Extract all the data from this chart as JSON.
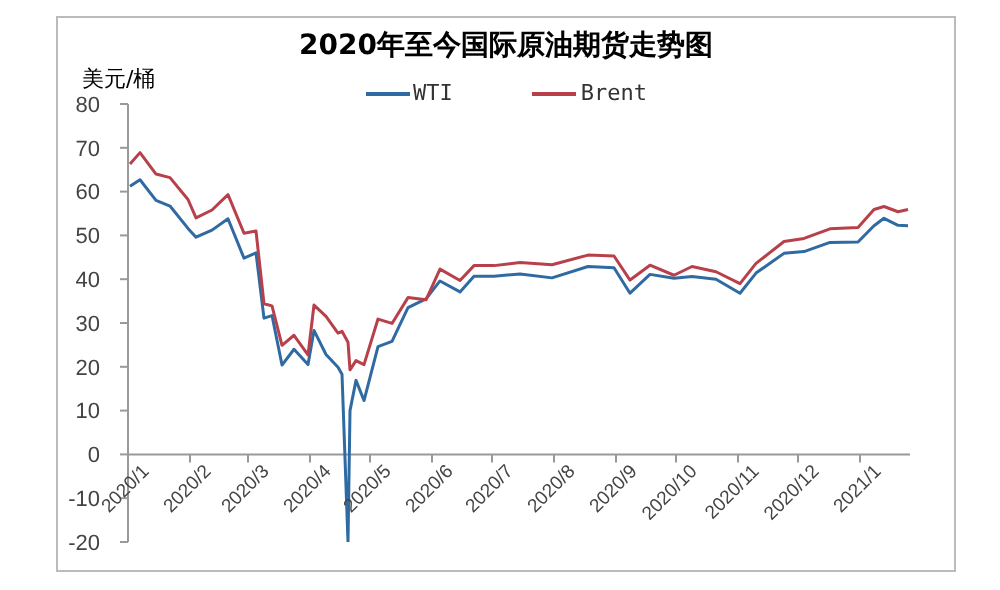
{
  "chart_data": {
    "type": "line",
    "title": "2020年至今国际原油期货走势图",
    "ylabel": "美元/桶",
    "x": [
      "2020-01-02",
      "2020-01-07",
      "2020-01-15",
      "2020-01-22",
      "2020-01-31",
      "2020-02-04",
      "2020-02-12",
      "2020-02-20",
      "2020-02-28",
      "2020-03-05",
      "2020-03-09",
      "2020-03-13",
      "2020-03-18",
      "2020-03-24",
      "2020-03-31",
      "2020-04-03",
      "2020-04-09",
      "2020-04-15",
      "2020-04-17",
      "2020-04-20",
      "2020-04-21",
      "2020-04-24",
      "2020-04-28",
      "2020-05-05",
      "2020-05-12",
      "2020-05-20",
      "2020-05-29",
      "2020-06-05",
      "2020-06-15",
      "2020-06-22",
      "2020-07-02",
      "2020-07-15",
      "2020-07-31",
      "2020-08-18",
      "2020-08-31",
      "2020-09-08",
      "2020-09-18",
      "2020-09-30",
      "2020-10-09",
      "2020-10-21",
      "2020-11-02",
      "2020-11-10",
      "2020-11-24",
      "2020-12-04",
      "2020-12-17",
      "2020-12-31",
      "2021-01-08",
      "2021-01-13",
      "2021-01-20",
      "2021-01-25"
    ],
    "series": [
      {
        "name": "WTI",
        "color": "#2f6aa3",
        "values": [
          61.2,
          62.7,
          58.0,
          56.7,
          51.6,
          49.6,
          51.2,
          53.8,
          44.8,
          46.0,
          31.1,
          31.7,
          20.4,
          24.0,
          20.5,
          28.3,
          22.8,
          19.9,
          18.3,
          -20,
          10.0,
          16.9,
          12.3,
          24.6,
          25.8,
          33.5,
          35.5,
          39.6,
          37.1,
          40.7,
          40.7,
          41.2,
          40.3,
          42.9,
          42.6,
          36.8,
          41.1,
          40.2,
          40.6,
          40.0,
          36.8,
          41.4,
          45.9,
          46.3,
          48.4,
          48.5,
          52.2,
          53.9,
          52.3,
          52.2
        ]
      },
      {
        "name": "Brent",
        "color": "#b8404a",
        "values": [
          66.3,
          68.9,
          64.0,
          63.2,
          58.2,
          54.0,
          55.8,
          59.3,
          50.5,
          51.0,
          34.4,
          33.9,
          24.9,
          27.2,
          22.7,
          34.1,
          31.5,
          27.7,
          28.1,
          25.6,
          19.3,
          21.4,
          20.5,
          30.9,
          29.9,
          35.8,
          35.3,
          42.3,
          39.7,
          43.1,
          43.1,
          43.8,
          43.3,
          45.5,
          45.3,
          39.8,
          43.2,
          40.9,
          42.9,
          41.7,
          39.0,
          43.6,
          48.6,
          49.3,
          51.5,
          51.8,
          55.9,
          56.6,
          55.4,
          55.9
        ]
      }
    ],
    "xlim": [
      "2020-01-01",
      "2021-01-26"
    ],
    "xticks": [
      {
        "value": "2020-01-01",
        "label": "2020/1"
      },
      {
        "value": "2020-02-01",
        "label": "2020/2"
      },
      {
        "value": "2020-03-01",
        "label": "2020/3"
      },
      {
        "value": "2020-04-01",
        "label": "2020/4"
      },
      {
        "value": "2020-05-01",
        "label": "2020/5"
      },
      {
        "value": "2020-06-01",
        "label": "2020/6"
      },
      {
        "value": "2020-07-01",
        "label": "2020/7"
      },
      {
        "value": "2020-08-01",
        "label": "2020/8"
      },
      {
        "value": "2020-09-01",
        "label": "2020/9"
      },
      {
        "value": "2020-10-01",
        "label": "2020/10"
      },
      {
        "value": "2020-11-01",
        "label": "2020/11"
      },
      {
        "value": "2020-12-01",
        "label": "2020/12"
      },
      {
        "value": "2021-01-01",
        "label": "2021/1"
      }
    ],
    "ylim": [
      -20,
      80
    ],
    "yticks": [
      -20,
      -10,
      0,
      10,
      20,
      30,
      40,
      50,
      60,
      70,
      80
    ],
    "legend": "top",
    "marker": "none",
    "line_style": "solid"
  }
}
